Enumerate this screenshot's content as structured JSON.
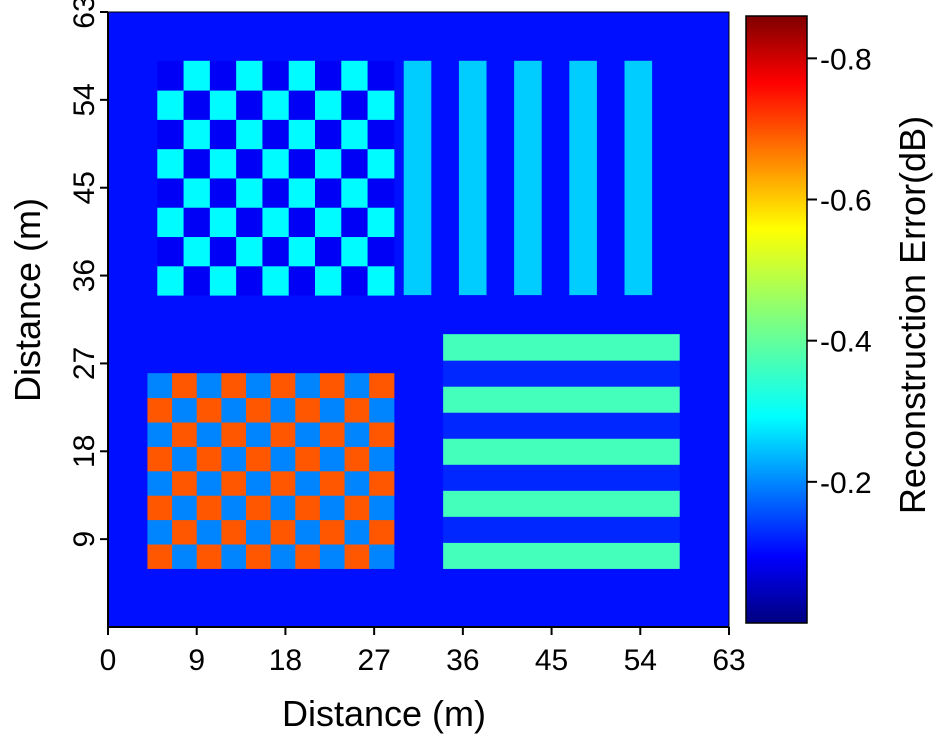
{
  "chart_data": {
    "type": "heatmap",
    "title": "",
    "xlabel": "Distance (m)",
    "ylabel": "Distance (m)",
    "xlim": [
      0,
      63
    ],
    "ylim": [
      0,
      63
    ],
    "x_ticks": [
      0,
      9,
      18,
      27,
      36,
      45,
      54,
      63
    ],
    "y_ticks": [
      9,
      18,
      27,
      36,
      45,
      54,
      63
    ],
    "x_tick_labels": [
      "0",
      "9",
      "18",
      "27",
      "36",
      "45",
      "54",
      "63"
    ],
    "y_tick_labels": [
      "9",
      "18",
      "27",
      "36",
      "45",
      "54",
      "63"
    ],
    "colorbar": {
      "label": "Reconstruction Error(dB)",
      "range": [
        0,
        0.86
      ],
      "ticks": [
        0.2,
        0.4,
        0.6,
        0.8
      ],
      "tick_labels": [
        "0.2",
        "0.4",
        "0.6",
        "0.8"
      ],
      "colormap": "jet"
    },
    "background_value": 0.12,
    "regions": [
      {
        "name": "top-left checkerboard",
        "x_range": [
          5,
          29
        ],
        "y_range": [
          34,
          58
        ],
        "pattern": "checkerboard",
        "cells_x": 9,
        "cells_y": 8,
        "high": 0.32,
        "low": 0.1
      },
      {
        "name": "top-right vertical stripes",
        "x_range": [
          30,
          58
        ],
        "y_range": [
          34,
          58
        ],
        "pattern": "vertical-stripes",
        "stripes": 10,
        "high": 0.28,
        "low": 0.12
      },
      {
        "name": "bottom-left checkerboard",
        "x_range": [
          4,
          29
        ],
        "y_range": [
          6,
          26
        ],
        "pattern": "checkerboard",
        "cells_x": 10,
        "cells_y": 8,
        "high": 0.68,
        "low": 0.22
      },
      {
        "name": "bottom-right horizontal stripes",
        "x_range": [
          34,
          58
        ],
        "y_range": [
          6,
          30
        ],
        "pattern": "horizontal-stripes",
        "stripes": 9,
        "high": 0.38,
        "low": 0.14
      }
    ]
  }
}
